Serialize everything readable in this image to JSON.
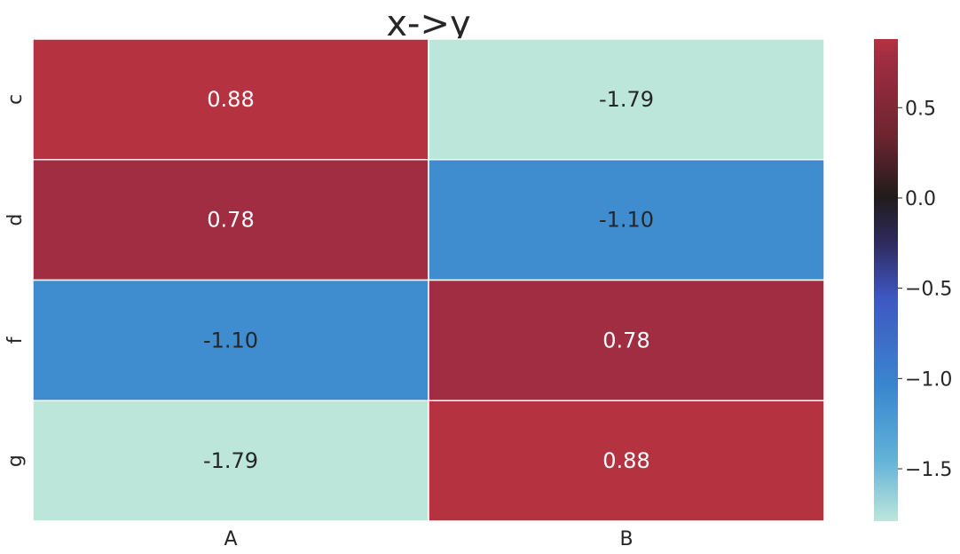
{
  "chart_data": {
    "type": "heatmap",
    "title": "x->y",
    "xlabel": "",
    "ylabel": "",
    "x_categories": [
      "A",
      "B"
    ],
    "y_categories": [
      "c",
      "d",
      "f",
      "g"
    ],
    "values": [
      [
        0.88,
        -1.79
      ],
      [
        0.78,
        -1.1
      ],
      [
        -1.1,
        0.78
      ],
      [
        -1.79,
        0.88
      ]
    ],
    "cell_labels": [
      [
        "0.88",
        "-1.79"
      ],
      [
        "0.78",
        "-1.10"
      ],
      [
        "-1.10",
        "0.78"
      ],
      [
        "-1.79",
        "0.88"
      ]
    ],
    "colorbar": {
      "range": [
        -1.79,
        0.88
      ],
      "ticks": [
        0.5,
        0.0,
        -0.5,
        -1.0,
        -1.5
      ],
      "tick_labels": [
        "0.5",
        "0.0",
        "−0.5",
        "−1.0",
        "−1.5"
      ]
    },
    "colors": {
      "low": "#bde6db",
      "mid_low": "#3a87ce",
      "mid": "#201c1c",
      "high": "#b53240"
    },
    "grid": false,
    "legend": "colorbar-right"
  }
}
